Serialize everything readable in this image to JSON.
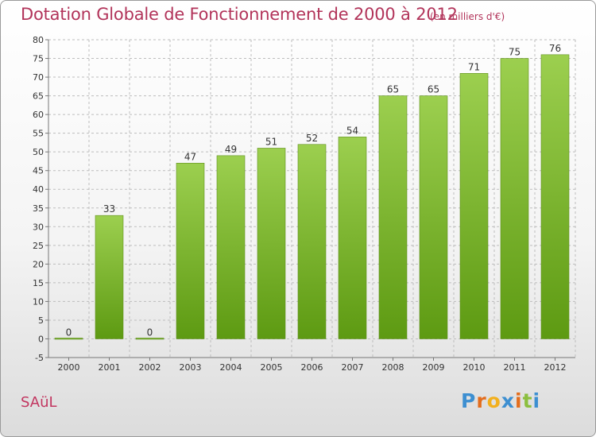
{
  "header": {
    "title": "Dotation Globale de Fonctionnement de 2000 à 2012",
    "unit": "(en milliers d'€)"
  },
  "footer": {
    "commune": "SAüL",
    "brand": [
      "P",
      "r",
      "o",
      "x",
      "i",
      "t",
      "i"
    ],
    "brand_colors": [
      "#3d8fd1",
      "#e36d1d",
      "#f2b01e",
      "#3d8fd1",
      "#e36d1d",
      "#8cbf3f",
      "#3d8fd1"
    ]
  },
  "chart_data": {
    "type": "bar",
    "title": "Dotation Globale de Fonctionnement de 2000 à 2012",
    "subtitle": "(en milliers d'€)",
    "xlabel": "",
    "ylabel": "",
    "categories": [
      "2000",
      "2001",
      "2002",
      "2003",
      "2004",
      "2005",
      "2006",
      "2007",
      "2008",
      "2009",
      "2010",
      "2011",
      "2012"
    ],
    "values": [
      0,
      33,
      0,
      47,
      49,
      51,
      52,
      54,
      65,
      65,
      71,
      75,
      76
    ],
    "ylim": [
      -5,
      80
    ],
    "yticks": [
      -5,
      0,
      5,
      10,
      15,
      20,
      25,
      30,
      35,
      40,
      45,
      50,
      55,
      60,
      65,
      70,
      75,
      80
    ],
    "grid": true,
    "colors": {
      "bar_top": "#9ccf4f",
      "bar_bottom": "#5d9a12",
      "grid": "#bdbdbd",
      "axis": "#777777"
    }
  }
}
